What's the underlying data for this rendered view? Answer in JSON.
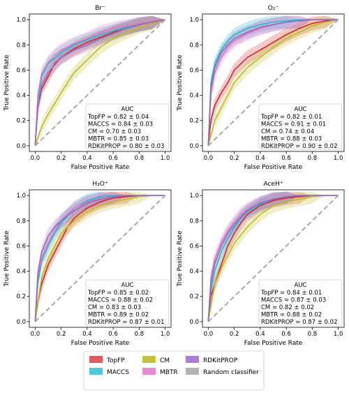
{
  "chart_data": [
    {
      "type": "line",
      "title": "Br⁻",
      "xlabel": "False Positive Rate",
      "ylabel": "True Positive Rate",
      "xlim": [
        0,
        1
      ],
      "ylim": [
        0,
        1
      ],
      "ticks": [
        "0.0",
        "0.2",
        "0.4",
        "0.6",
        "0.8",
        "1.0"
      ],
      "auc_header": "AUC",
      "auc_lines": [
        "TopFP = 0.82 ± 0.04",
        "MACCS = 0.84 ± 0.03",
        "CM = 0.70 ± 0.03",
        "MBTR = 0.85 ± 0.03",
        "RDKitPROP = 0.80 ± 0.03"
      ],
      "series": [
        {
          "name": "TopFP",
          "x": [
            0,
            0.02,
            0.05,
            0.1,
            0.15,
            0.2,
            0.3,
            0.4,
            0.5,
            0.6,
            0.7,
            0.8,
            0.9,
            1.0
          ],
          "y": [
            0,
            0.3,
            0.45,
            0.55,
            0.65,
            0.7,
            0.77,
            0.82,
            0.86,
            0.9,
            0.93,
            0.96,
            0.98,
            1.0
          ]
        },
        {
          "name": "MACCS",
          "x": [
            0,
            0.02,
            0.05,
            0.1,
            0.15,
            0.2,
            0.3,
            0.4,
            0.5,
            0.6,
            0.7,
            0.8,
            0.9,
            1.0
          ],
          "y": [
            0,
            0.35,
            0.55,
            0.65,
            0.7,
            0.74,
            0.8,
            0.84,
            0.88,
            0.91,
            0.94,
            0.96,
            0.98,
            1.0
          ]
        },
        {
          "name": "CM",
          "x": [
            0,
            0.05,
            0.1,
            0.2,
            0.3,
            0.4,
            0.5,
            0.6,
            0.7,
            0.8,
            0.9,
            1.0
          ],
          "y": [
            0,
            0.15,
            0.25,
            0.42,
            0.58,
            0.68,
            0.78,
            0.85,
            0.9,
            0.94,
            0.97,
            1.0
          ]
        },
        {
          "name": "MBTR",
          "x": [
            0,
            0.02,
            0.05,
            0.1,
            0.15,
            0.2,
            0.3,
            0.4,
            0.5,
            0.6,
            0.7,
            0.8,
            0.9,
            1.0
          ],
          "y": [
            0,
            0.4,
            0.57,
            0.66,
            0.72,
            0.76,
            0.81,
            0.85,
            0.9,
            0.93,
            0.95,
            0.97,
            0.99,
            1.0
          ]
        },
        {
          "name": "RDKitPROP",
          "x": [
            0,
            0.02,
            0.05,
            0.1,
            0.15,
            0.2,
            0.3,
            0.4,
            0.5,
            0.6,
            0.7,
            0.8,
            0.9,
            1.0
          ],
          "y": [
            0,
            0.3,
            0.48,
            0.58,
            0.64,
            0.7,
            0.76,
            0.8,
            0.85,
            0.89,
            0.93,
            0.96,
            0.98,
            1.0
          ]
        },
        {
          "name": "Random classifier",
          "x": [
            0,
            1
          ],
          "y": [
            0,
            1
          ]
        }
      ]
    },
    {
      "type": "line",
      "title": "O₂⁻",
      "xlabel": "False Positive Rate",
      "ylabel": "True Positive Rate",
      "xlim": [
        0,
        1
      ],
      "ylim": [
        0,
        1
      ],
      "ticks": [
        "0.0",
        "0.2",
        "0.4",
        "0.6",
        "0.8",
        "1.0"
      ],
      "auc_header": "AUC",
      "auc_lines": [
        "TopFP = 0.82 ± 0.01",
        "MACCS = 0.91 ± 0.01",
        "CM = 0.74 ± 0.04",
        "MBTR = 0.88 ± 0.03",
        "RDKitPROP = 0.90 ± 0.02"
      ],
      "series": [
        {
          "name": "TopFP",
          "x": [
            0,
            0.02,
            0.05,
            0.1,
            0.15,
            0.2,
            0.3,
            0.4,
            0.5,
            0.6,
            0.7,
            0.8,
            0.9,
            1.0
          ],
          "y": [
            0,
            0.2,
            0.32,
            0.42,
            0.5,
            0.6,
            0.7,
            0.76,
            0.82,
            0.88,
            0.93,
            0.97,
            0.99,
            1.0
          ]
        },
        {
          "name": "MACCS",
          "x": [
            0,
            0.02,
            0.05,
            0.1,
            0.15,
            0.2,
            0.3,
            0.4,
            0.5,
            0.6,
            0.7,
            0.8,
            0.9,
            1.0
          ],
          "y": [
            0,
            0.5,
            0.65,
            0.76,
            0.83,
            0.88,
            0.93,
            0.96,
            0.98,
            0.99,
            1.0,
            1.0,
            1.0,
            1.0
          ]
        },
        {
          "name": "CM",
          "x": [
            0,
            0.05,
            0.1,
            0.2,
            0.3,
            0.4,
            0.5,
            0.6,
            0.7,
            0.8,
            0.9,
            1.0
          ],
          "y": [
            0,
            0.2,
            0.3,
            0.5,
            0.62,
            0.7,
            0.78,
            0.85,
            0.9,
            0.95,
            0.98,
            1.0
          ]
        },
        {
          "name": "MBTR",
          "x": [
            0,
            0.02,
            0.05,
            0.1,
            0.15,
            0.2,
            0.3,
            0.4,
            0.5,
            0.6,
            0.7,
            0.8,
            0.9,
            1.0
          ],
          "y": [
            0,
            0.4,
            0.58,
            0.7,
            0.78,
            0.83,
            0.89,
            0.93,
            0.96,
            0.98,
            0.99,
            1.0,
            1.0,
            1.0
          ]
        },
        {
          "name": "RDKitPROP",
          "x": [
            0,
            0.02,
            0.05,
            0.1,
            0.15,
            0.2,
            0.3,
            0.4,
            0.5,
            0.6,
            0.7,
            0.8,
            0.9,
            1.0
          ],
          "y": [
            0,
            0.45,
            0.62,
            0.74,
            0.8,
            0.85,
            0.9,
            0.94,
            0.96,
            0.98,
            0.99,
            1.0,
            1.0,
            1.0
          ]
        },
        {
          "name": "Random classifier",
          "x": [
            0,
            1
          ],
          "y": [
            0,
            1
          ]
        }
      ]
    },
    {
      "type": "line",
      "title": "H₃O⁺",
      "xlabel": "False Positive Rate",
      "ylabel": "True Positive Rate",
      "xlim": [
        0,
        1
      ],
      "ylim": [
        0,
        1
      ],
      "ticks": [
        "0.0",
        "0.2",
        "0.4",
        "0.6",
        "0.8",
        "1.0"
      ],
      "auc_header": "AUC",
      "auc_lines": [
        "TopFP = 0.85 ± 0.02",
        "MACCS = 0.88 ± 0.02",
        "CM = 0.83 ± 0.03",
        "MBTR = 0.89 ± 0.02",
        "RDKitPROP = 0.87 ± 0.01"
      ],
      "series": [
        {
          "name": "TopFP",
          "x": [
            0,
            0.02,
            0.05,
            0.1,
            0.15,
            0.2,
            0.25,
            0.3,
            0.4,
            0.5,
            0.6,
            0.7,
            0.8,
            0.9,
            1.0
          ],
          "y": [
            0,
            0.15,
            0.3,
            0.45,
            0.55,
            0.65,
            0.75,
            0.82,
            0.9,
            0.95,
            0.98,
            0.99,
            1.0,
            1.0,
            1.0
          ]
        },
        {
          "name": "MACCS",
          "x": [
            0,
            0.02,
            0.05,
            0.1,
            0.15,
            0.2,
            0.25,
            0.3,
            0.4,
            0.5,
            0.6,
            0.7,
            0.8,
            0.9,
            1.0
          ],
          "y": [
            0,
            0.3,
            0.48,
            0.6,
            0.7,
            0.78,
            0.84,
            0.9,
            0.96,
            0.99,
            1.0,
            1.0,
            1.0,
            1.0,
            1.0
          ]
        },
        {
          "name": "CM",
          "x": [
            0,
            0.05,
            0.1,
            0.2,
            0.3,
            0.4,
            0.5,
            0.6,
            0.7,
            0.8,
            0.9,
            1.0
          ],
          "y": [
            0,
            0.35,
            0.5,
            0.7,
            0.8,
            0.87,
            0.92,
            0.95,
            0.97,
            0.99,
            1.0,
            1.0
          ]
        },
        {
          "name": "MBTR",
          "x": [
            0,
            0.02,
            0.05,
            0.1,
            0.15,
            0.2,
            0.25,
            0.3,
            0.4,
            0.5,
            0.6,
            0.7,
            0.8,
            0.9,
            1.0
          ],
          "y": [
            0,
            0.35,
            0.5,
            0.62,
            0.72,
            0.8,
            0.85,
            0.9,
            0.95,
            0.98,
            0.99,
            1.0,
            1.0,
            1.0,
            1.0
          ]
        },
        {
          "name": "RDKitPROP",
          "x": [
            0,
            0.02,
            0.05,
            0.1,
            0.15,
            0.2,
            0.25,
            0.3,
            0.4,
            0.5,
            0.6,
            0.7,
            0.8,
            0.9,
            1.0
          ],
          "y": [
            0,
            0.38,
            0.55,
            0.68,
            0.75,
            0.8,
            0.84,
            0.88,
            0.94,
            0.97,
            0.99,
            1.0,
            1.0,
            1.0,
            1.0
          ]
        },
        {
          "name": "Random classifier",
          "x": [
            0,
            1
          ],
          "y": [
            0,
            1
          ]
        }
      ]
    },
    {
      "type": "line",
      "title": "AceH⁺",
      "xlabel": "False Positive Rate",
      "ylabel": "True Positive Rate",
      "xlim": [
        0,
        1
      ],
      "ylim": [
        0,
        1
      ],
      "ticks": [
        "0.0",
        "0.2",
        "0.4",
        "0.6",
        "0.8",
        "1.0"
      ],
      "auc_header": "AUC",
      "auc_lines": [
        "TopFP = 0.84 ± 0.01",
        "MACCS = 0.87 ± 0.03",
        "CM = 0.82 ± 0.02",
        "MBTR = 0.88 ± 0.02",
        "RDKitPROP = 0.87 ± 0.02"
      ],
      "series": [
        {
          "name": "TopFP",
          "x": [
            0,
            0.02,
            0.05,
            0.1,
            0.15,
            0.2,
            0.25,
            0.3,
            0.4,
            0.5,
            0.6,
            0.7,
            0.8,
            0.9,
            1.0
          ],
          "y": [
            0,
            0.2,
            0.3,
            0.45,
            0.6,
            0.7,
            0.78,
            0.85,
            0.92,
            0.96,
            0.98,
            0.99,
            1.0,
            1.0,
            1.0
          ]
        },
        {
          "name": "MACCS",
          "x": [
            0,
            0.02,
            0.05,
            0.1,
            0.15,
            0.2,
            0.25,
            0.3,
            0.4,
            0.5,
            0.6,
            0.7,
            0.8,
            0.9,
            1.0
          ],
          "y": [
            0,
            0.25,
            0.4,
            0.55,
            0.66,
            0.75,
            0.82,
            0.87,
            0.93,
            0.97,
            0.99,
            1.0,
            1.0,
            1.0,
            1.0
          ]
        },
        {
          "name": "CM",
          "x": [
            0,
            0.05,
            0.1,
            0.2,
            0.3,
            0.4,
            0.5,
            0.6,
            0.7,
            0.8,
            0.9,
            1.0
          ],
          "y": [
            0,
            0.3,
            0.42,
            0.62,
            0.75,
            0.85,
            0.92,
            0.95,
            0.97,
            0.99,
            1.0,
            1.0
          ]
        },
        {
          "name": "MBTR",
          "x": [
            0,
            0.02,
            0.05,
            0.1,
            0.15,
            0.2,
            0.25,
            0.3,
            0.4,
            0.5,
            0.6,
            0.7,
            0.8,
            0.9,
            1.0
          ],
          "y": [
            0,
            0.35,
            0.5,
            0.63,
            0.72,
            0.79,
            0.85,
            0.89,
            0.94,
            0.97,
            0.99,
            1.0,
            1.0,
            1.0,
            1.0
          ]
        },
        {
          "name": "RDKitPROP",
          "x": [
            0,
            0.02,
            0.05,
            0.1,
            0.15,
            0.2,
            0.25,
            0.3,
            0.4,
            0.5,
            0.6,
            0.7,
            0.8,
            0.9,
            1.0
          ],
          "y": [
            0,
            0.3,
            0.46,
            0.6,
            0.7,
            0.77,
            0.83,
            0.88,
            0.94,
            0.97,
            0.99,
            1.0,
            1.0,
            1.0,
            1.0
          ]
        },
        {
          "name": "Random classifier",
          "x": [
            0,
            1
          ],
          "y": [
            0,
            1
          ]
        }
      ]
    }
  ],
  "legend": {
    "items": [
      {
        "label": "TopFP",
        "color": "#e35a5f"
      },
      {
        "label": "CM",
        "color": "#c4c23a"
      },
      {
        "label": "RDKitPROP",
        "color": "#a97fd2"
      },
      {
        "label": "MACCS",
        "color": "#4ec8db"
      },
      {
        "label": "MBTR",
        "color": "#e688d3"
      },
      {
        "label": "Random classifier",
        "color": "#b4b4b4"
      }
    ]
  },
  "colors": {
    "TopFP": "#d62728",
    "MACCS": "#17becf",
    "CM": "#bcbd22",
    "MBTR": "#e377c2",
    "RDKitPROP": "#9467bd",
    "Random classifier": "#a9a9a9"
  }
}
